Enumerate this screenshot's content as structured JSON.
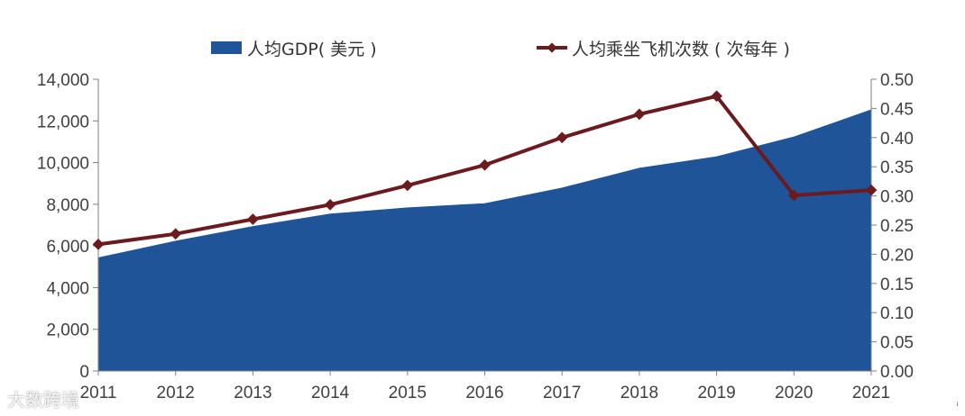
{
  "chart_data": {
    "type": "area+line",
    "categories": [
      "2011",
      "2012",
      "2013",
      "2014",
      "2015",
      "2016",
      "2017",
      "2018",
      "2019",
      "2020",
      "2021"
    ],
    "series": [
      {
        "name": "人均GDP( 美元 )",
        "type": "area",
        "axis": "left",
        "values": [
          5450,
          6250,
          6950,
          7550,
          7850,
          8050,
          8800,
          9750,
          10300,
          11250,
          12550
        ]
      },
      {
        "name": "人均乘坐飞机次数 ( 次每年 )",
        "type": "line",
        "axis": "right",
        "values": [
          0.217,
          0.235,
          0.26,
          0.285,
          0.318,
          0.353,
          0.4,
          0.44,
          0.471,
          0.301,
          0.31
        ]
      }
    ],
    "y_left": {
      "min": 0,
      "max": 14000,
      "ticks": [
        "0",
        "2,000",
        "4,000",
        "6,000",
        "8,000",
        "10,000",
        "12,000",
        "14,000"
      ]
    },
    "y_right": {
      "min": 0,
      "max": 0.5,
      "ticks": [
        "0.00",
        "0.05",
        "0.10",
        "0.15",
        "0.20",
        "0.25",
        "0.30",
        "0.35",
        "0.40",
        "0.45",
        "0.50"
      ]
    },
    "legend_position": "top"
  },
  "colors": {
    "area": "#1f5499",
    "line": "#6b1a1e",
    "axis": "#7f7f7f"
  },
  "watermark": "大数跨境",
  "corner_glyph": "ꜟ"
}
